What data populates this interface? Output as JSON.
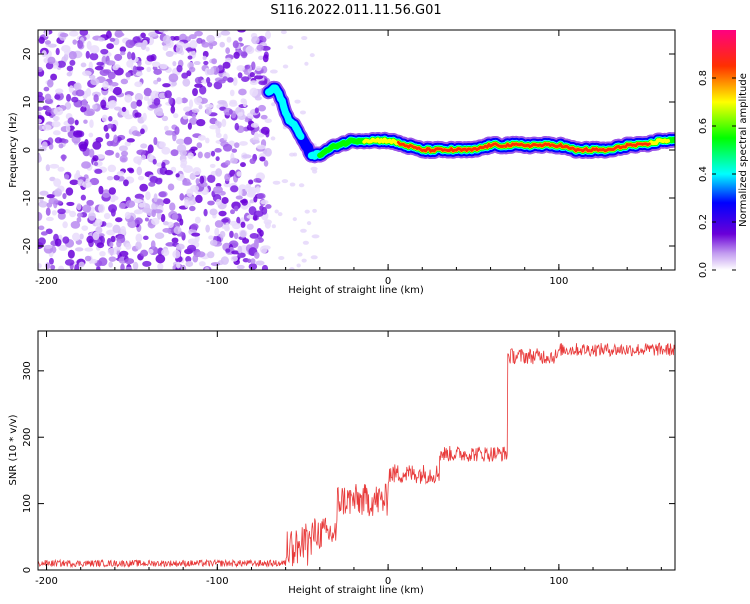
{
  "title": "S116.2022.011.11.56.G01",
  "chart_data": [
    {
      "type": "heatmap",
      "title": "S116.2022.011.11.56.G01",
      "xlabel": "Height of straight line (km)",
      "ylabel": "Frequency (Hz)",
      "xlim": [
        -205,
        168
      ],
      "ylim": [
        -25,
        25
      ],
      "xticks": [
        -200,
        -100,
        0,
        100
      ],
      "yticks": [
        -20,
        -10,
        0,
        10,
        20
      ],
      "colorbar": {
        "label": "Normalized spectral amplitude",
        "range": [
          0,
          1
        ],
        "ticks": [
          "0.0",
          "0.2",
          "0.4",
          "0.6",
          "0.8"
        ],
        "colors": [
          "#ffffff",
          "#8a2be2",
          "#0000ff",
          "#00ffff",
          "#00ff00",
          "#ffff00",
          "#ff0000",
          "#ff00aa"
        ]
      },
      "noise_region": {
        "x": [
          -205,
          -70
        ],
        "y": [
          -25,
          25
        ]
      },
      "ridge": [
        {
          "x": -70,
          "y": 12,
          "amp": 0.45
        },
        {
          "x": -66,
          "y": 13,
          "amp": 0.45
        },
        {
          "x": -62,
          "y": 10,
          "amp": 0.35
        },
        {
          "x": -58,
          "y": 6,
          "amp": 0.35
        },
        {
          "x": -54,
          "y": 5,
          "amp": 0.4
        },
        {
          "x": -50,
          "y": 2,
          "amp": 0.3
        },
        {
          "x": -45,
          "y": -1,
          "amp": 0.35
        },
        {
          "x": -40,
          "y": -1,
          "amp": 0.5
        },
        {
          "x": -30,
          "y": 1,
          "amp": 0.55
        },
        {
          "x": -20,
          "y": 2,
          "amp": 0.6
        },
        {
          "x": -10,
          "y": 2,
          "amp": 0.7
        },
        {
          "x": 0,
          "y": 2,
          "amp": 0.75
        },
        {
          "x": 10,
          "y": 1,
          "amp": 0.8
        },
        {
          "x": 20,
          "y": 0,
          "amp": 0.85
        },
        {
          "x": 30,
          "y": 0,
          "amp": 0.9
        },
        {
          "x": 40,
          "y": 0,
          "amp": 0.85
        },
        {
          "x": 50,
          "y": 0,
          "amp": 0.9
        },
        {
          "x": 60,
          "y": 1,
          "amp": 0.85
        },
        {
          "x": 70,
          "y": 1,
          "amp": 0.95
        },
        {
          "x": 80,
          "y": 1,
          "amp": 0.95
        },
        {
          "x": 90,
          "y": 1,
          "amp": 0.85
        },
        {
          "x": 100,
          "y": 1,
          "amp": 0.9
        },
        {
          "x": 110,
          "y": 0,
          "amp": 0.9
        },
        {
          "x": 120,
          "y": 0,
          "amp": 0.95
        },
        {
          "x": 130,
          "y": 0,
          "amp": 0.85
        },
        {
          "x": 140,
          "y": 1,
          "amp": 0.9
        },
        {
          "x": 150,
          "y": 1,
          "amp": 0.8
        },
        {
          "x": 160,
          "y": 2,
          "amp": 0.7
        },
        {
          "x": 168,
          "y": 2,
          "amp": 0.6
        }
      ]
    },
    {
      "type": "line",
      "xlabel": "Height of straight line (km)",
      "ylabel": "SNR (10 * v/v)",
      "xlim": [
        -205,
        168
      ],
      "ylim": [
        0,
        360
      ],
      "xticks": [
        -200,
        -100,
        0,
        100
      ],
      "yticks": [
        0,
        100,
        200,
        300
      ],
      "line_color": "#e83a3a",
      "segments": [
        {
          "x": [
            -205,
            -60
          ],
          "mean": 10,
          "noise": 5
        },
        {
          "x": [
            -60,
            -45
          ],
          "mean": 35,
          "noise": 30
        },
        {
          "x": [
            -45,
            -30
          ],
          "mean": 55,
          "noise": 25
        },
        {
          "x": [
            -30,
            0
          ],
          "mean": 105,
          "noise": 25
        },
        {
          "x": [
            0,
            30
          ],
          "mean": 145,
          "noise": 15
        },
        {
          "x": [
            30,
            70
          ],
          "mean": 175,
          "noise": 12
        },
        {
          "x": [
            70,
            100
          ],
          "mean": 322,
          "noise": 12
        },
        {
          "x": [
            100,
            168
          ],
          "mean": 332,
          "noise": 10
        }
      ]
    }
  ]
}
